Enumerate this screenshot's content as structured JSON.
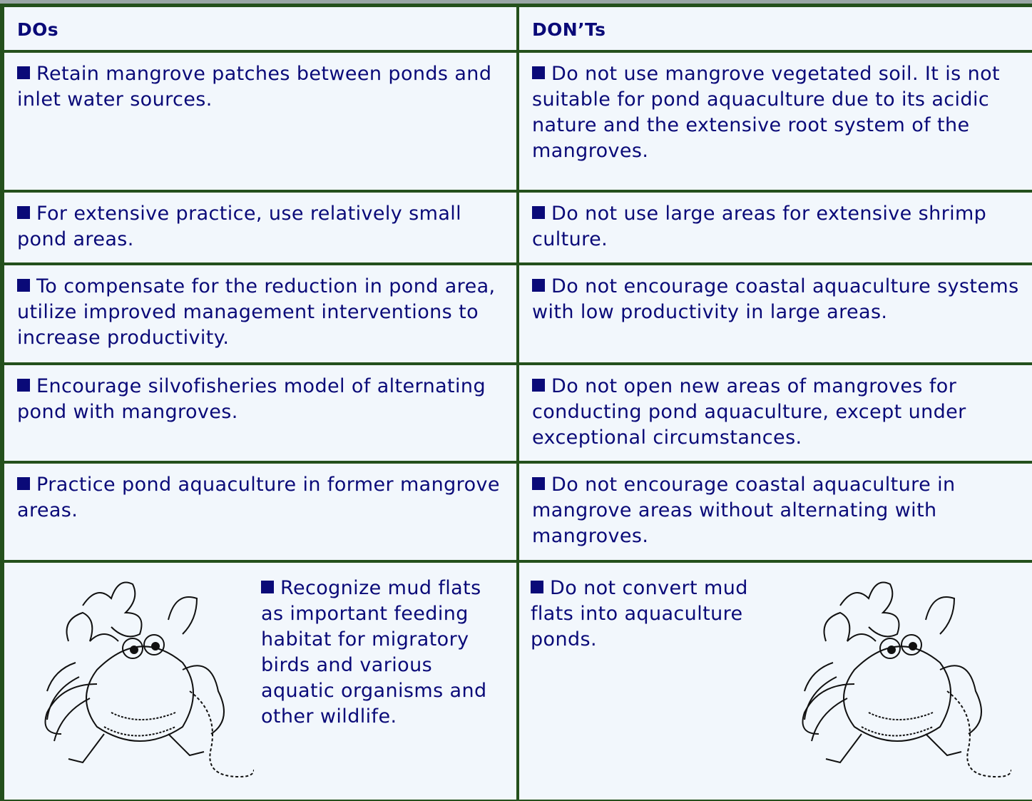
{
  "table": {
    "header": [
      "DOs",
      "DON’Ts"
    ],
    "rows": [
      [
        "Retain mangrove patches between ponds and inlet water sources.",
        "Do not use mangrove vegetated soil. It is not suitable for pond aquaculture due to its acidic nature and the extensive root system of the mangroves."
      ],
      [
        "For extensive practice, use relatively small pond areas.",
        "Do not use large areas for extensive shrimp culture."
      ],
      [
        "To compensate for the reduction in pond area, utilize improved management interventions to increase productivity.",
        "Do not encourage coastal aquaculture systems with low productivity in large areas."
      ],
      [
        "Encourage silvofisheries model of alternating pond with mangroves.",
        "Do not open new areas of mangroves for conducting pond aquaculture, except under exceptional circumstances."
      ],
      [
        "Practice pond aquaculture in former mangrove areas.",
        "Do not encourage coastal aquaculture in mangrove areas without alternating with mangroves."
      ],
      [
        "Recognize mud flats as important feeding habitat for migratory birds and various aquatic organisms and other wildlife.",
        "Do not convert mud flats into aquaculture ponds."
      ]
    ]
  }
}
